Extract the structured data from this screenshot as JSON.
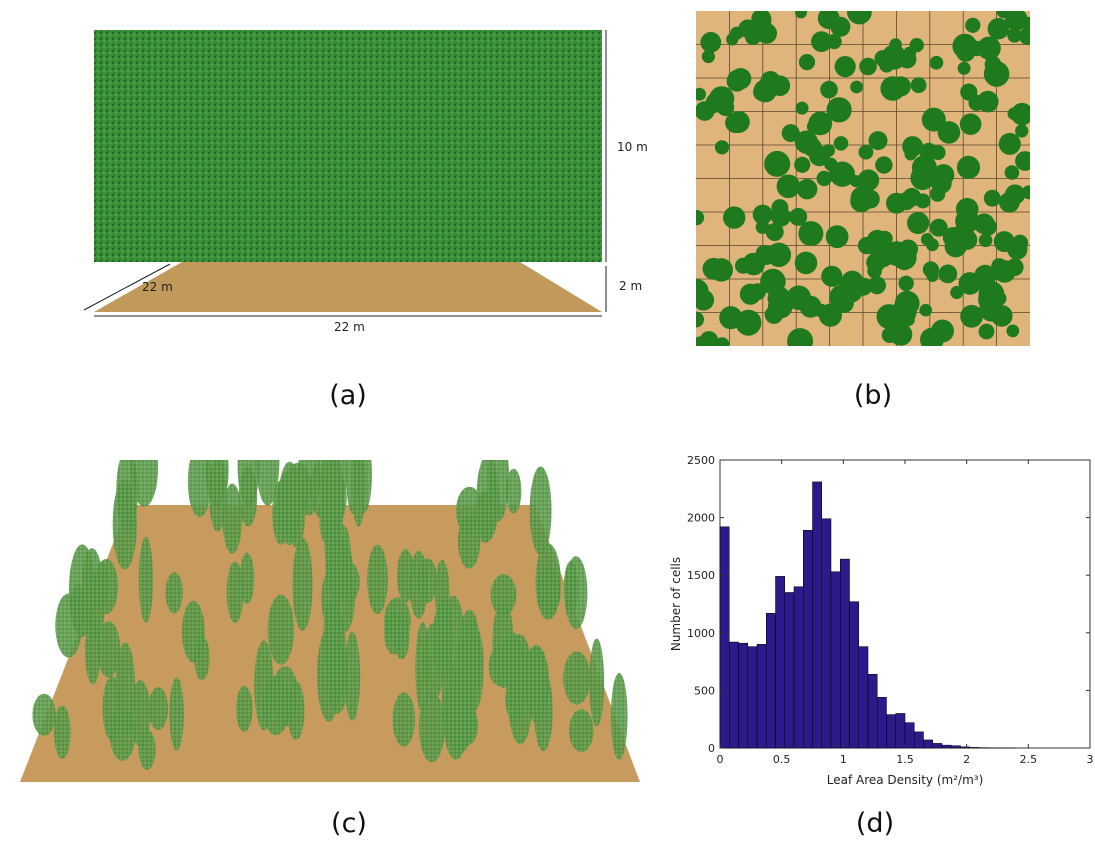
{
  "figure": {
    "panel_a": {
      "caption": "(a)",
      "dims": {
        "height_top": "10 m",
        "height_ground": "2 m",
        "depth": "22 m",
        "width": "22 m"
      }
    },
    "panel_b": {
      "caption": "(b)"
    },
    "panel_c": {
      "caption": "(c)"
    },
    "panel_d": {
      "caption": "(d)"
    }
  },
  "colors": {
    "foliage": "#1f7a1f",
    "foliage_light": "#5a9a3a",
    "ground": "#c19a5b",
    "ground_light": "#e0b57c",
    "bar": "#2a1a8a"
  },
  "chart_data": {
    "type": "bar",
    "xlabel": "Leaf Area Density (m²/m³)",
    "ylabel": "Number of cells",
    "xlim": [
      0,
      3
    ],
    "ylim": [
      0,
      2500
    ],
    "xticks": [
      "0",
      "0.5",
      "1",
      "1.5",
      "2",
      "2.5",
      "3"
    ],
    "yticks": [
      "0",
      "500",
      "1000",
      "1500",
      "2000",
      "2500"
    ],
    "bin_width": 0.075,
    "bin_starts": [
      0,
      0.075,
      0.15,
      0.225,
      0.3,
      0.375,
      0.45,
      0.525,
      0.6,
      0.675,
      0.75,
      0.825,
      0.9,
      0.975,
      1.05,
      1.125,
      1.2,
      1.275,
      1.35,
      1.425,
      1.5,
      1.575,
      1.65,
      1.725,
      1.8,
      1.875,
      1.95,
      2.025,
      2.1,
      2.175,
      2.25,
      2.325,
      2.4,
      2.475,
      2.55
    ],
    "values": [
      1920,
      920,
      910,
      880,
      900,
      1170,
      1490,
      1350,
      1400,
      1890,
      2310,
      1990,
      1530,
      1640,
      1270,
      880,
      640,
      440,
      290,
      300,
      220,
      140,
      70,
      40,
      25,
      20,
      10,
      5,
      3,
      2,
      1,
      1,
      0,
      0,
      0
    ]
  }
}
